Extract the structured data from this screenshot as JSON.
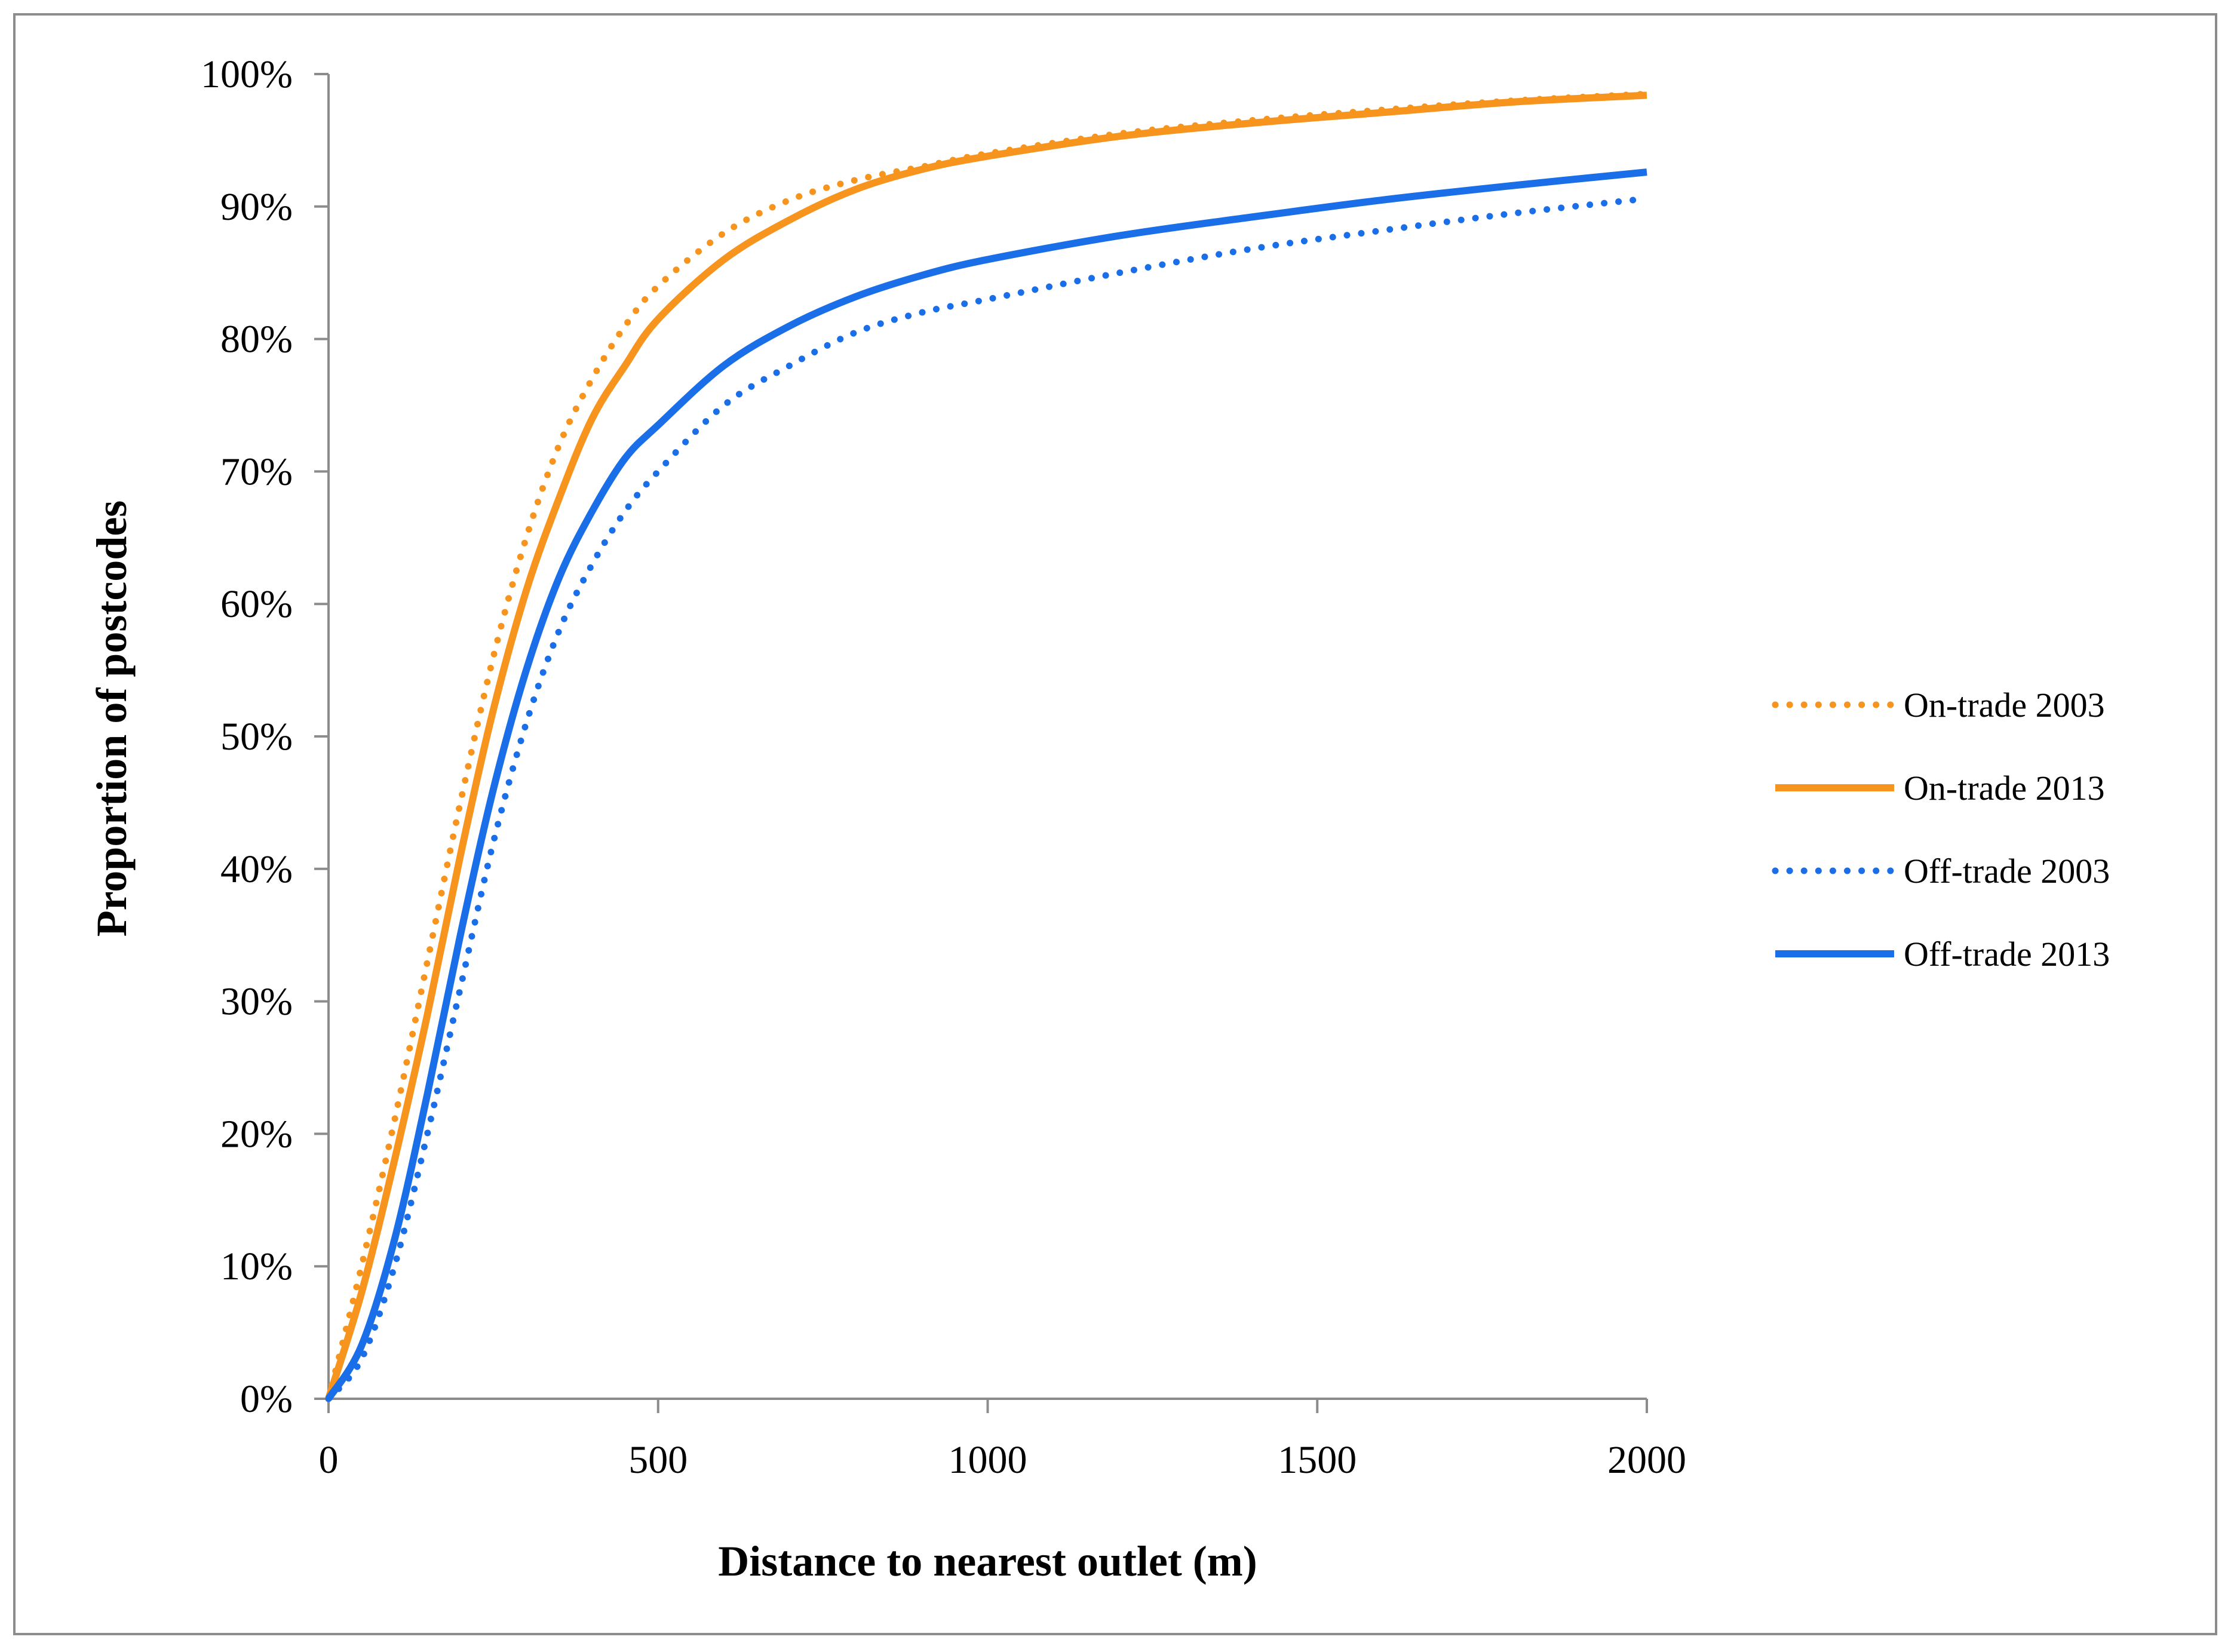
{
  "chart_data": {
    "type": "line",
    "title": "",
    "xlabel": "Distance to nearest outlet (m)",
    "ylabel": "Proportion of postcodes",
    "xlim": [
      0,
      2000
    ],
    "ylim": [
      0,
      100
    ],
    "x_ticks": [
      0,
      500,
      1000,
      1500,
      2000
    ],
    "x_tick_labels": [
      "0",
      "500",
      "1000",
      "1500",
      "2000"
    ],
    "y_ticks": [
      0,
      10,
      20,
      30,
      40,
      50,
      60,
      70,
      80,
      90,
      100
    ],
    "y_tick_labels": [
      "0%",
      "10%",
      "20%",
      "30%",
      "40%",
      "50%",
      "60%",
      "70%",
      "80%",
      "90%",
      "100%"
    ],
    "grid": false,
    "legend_position": "right",
    "x": [
      0,
      50,
      100,
      150,
      200,
      250,
      300,
      350,
      400,
      450,
      500,
      600,
      700,
      800,
      900,
      1000,
      1200,
      1400,
      1600,
      1800,
      2000
    ],
    "series": [
      {
        "name": "On-trade 2003",
        "style": "dotted",
        "color": "#F7941D",
        "values": [
          0,
          10,
          21,
          33,
          45,
          56,
          65,
          72,
          77,
          81,
          84,
          88,
          90.5,
          92,
          93,
          94,
          95.5,
          96.5,
          97.3,
          98,
          98.5
        ]
      },
      {
        "name": "On-trade 2013",
        "style": "solid",
        "color": "#F7941D",
        "values": [
          0,
          8,
          18,
          29,
          41,
          52,
          61,
          68,
          74,
          78,
          81.5,
          86,
          89,
          91.3,
          92.8,
          93.8,
          95.3,
          96.3,
          97.1,
          97.9,
          98.4
        ]
      },
      {
        "name": "Off-trade 2003",
        "style": "dotted",
        "color": "#1A6FE8",
        "values": [
          0,
          3,
          10,
          20,
          31,
          42,
          51,
          58,
          63,
          67,
          70,
          75,
          78,
          80.5,
          82,
          83,
          85,
          86.8,
          88.2,
          89.5,
          90.6
        ]
      },
      {
        "name": "Off-trade 2013",
        "style": "solid",
        "color": "#1A6FE8",
        "values": [
          0,
          4,
          12,
          23,
          35,
          46,
          55,
          62,
          67,
          71,
          73.5,
          78,
          81,
          83.2,
          84.8,
          86,
          87.8,
          89.2,
          90.5,
          91.6,
          92.6
        ]
      }
    ]
  }
}
